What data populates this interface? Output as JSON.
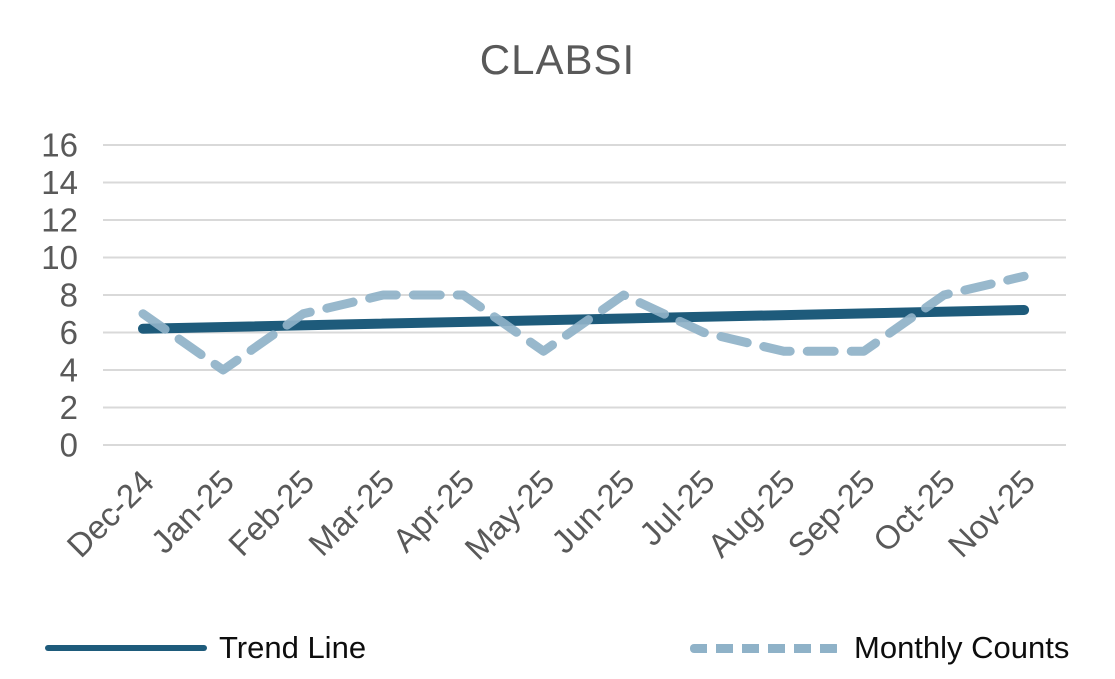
{
  "page": {
    "background": "#ffffff"
  },
  "chart_data": {
    "type": "line",
    "title": "CLABSI",
    "categories": [
      "Dec-24",
      "Jan-25",
      "Feb-25",
      "Mar-25",
      "Apr-25",
      "May-25",
      "Jun-25",
      "Jul-25",
      "Aug-25",
      "Sep-25",
      "Oct-25",
      "Nov-25"
    ],
    "series": [
      {
        "name": "Trend Line",
        "style": "solid",
        "color": "#1e5b7b",
        "stroke_width": 10,
        "trend_endpoints": [
          6.2,
          7.2
        ]
      },
      {
        "name": "Monthly Counts",
        "style": "dashed",
        "color": "#8fb2c8",
        "stroke_width": 9,
        "values": [
          7,
          4,
          7,
          8,
          8,
          5,
          8,
          6,
          5,
          5,
          8,
          9
        ]
      }
    ],
    "xlabel": "",
    "ylabel": "",
    "ylim": [
      0,
      16
    ],
    "ytick_step": 2,
    "yticks": [
      0,
      2,
      4,
      6,
      8,
      10,
      12,
      14,
      16
    ],
    "grid": true,
    "legend_position": "bottom",
    "colors": {
      "title_text": "#595959",
      "axis_labels": "#595959",
      "gridlines": "#d9d9d9",
      "legend_text": "#0d0d0d"
    }
  }
}
